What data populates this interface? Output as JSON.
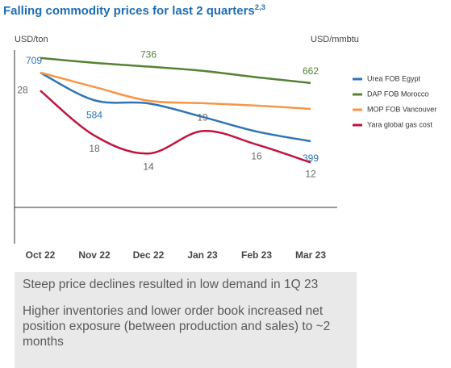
{
  "chart_data": {
    "type": "line",
    "title": "Falling commodity prices for last 2 quarters",
    "title_superscript": "2,3",
    "y_label": "USD/ton",
    "y2_label": "USD/mmbtu",
    "categories": [
      "Oct 22",
      "Nov 22",
      "Dec 22",
      "Jan 23",
      "Feb 23",
      "Mar 23"
    ],
    "ylim": [
      100,
      800
    ],
    "y2lim": [
      2,
      36.5
    ],
    "legend": "right",
    "series": [
      {
        "name": "Urea FOB Egypt",
        "color": "#2e75b6",
        "values": [
          709,
          584,
          570,
          509,
          443,
          399
        ]
      },
      {
        "name": "DAP FOB Morocco",
        "color": "#548235",
        "values": [
          775,
          753,
          736,
          717,
          688,
          662
        ]
      },
      {
        "name": "MOP FOB Vancouver",
        "color": "#f79646",
        "values": [
          709,
          644,
          582,
          571,
          560,
          545
        ]
      },
      {
        "name": "Yara global gas cost",
        "color": "#c0143c",
        "axis": "y2",
        "values": [
          28,
          18,
          14,
          19,
          16,
          12
        ]
      }
    ],
    "notes": [
      "Steep price declines resulted in low demand in 1Q 23",
      "Higher inventories and lower order book increased net position exposure (between production and sales) to ~2 months"
    ]
  }
}
